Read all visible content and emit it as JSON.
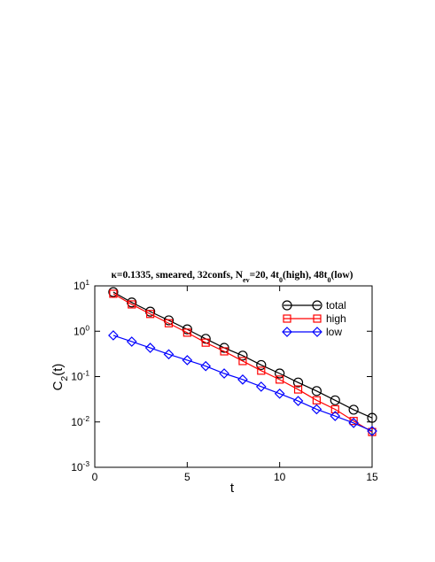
{
  "chart_data": {
    "type": "line",
    "title": "κ=0.1335, smeared, 32confs, N_{ev}=20, 4t_{0}(high), 48t_{0}(low)",
    "x_label": "t",
    "y_label": "C_{2}(t)",
    "x": [
      1,
      2,
      3,
      4,
      5,
      6,
      7,
      8,
      9,
      10,
      11,
      12,
      13,
      14,
      15
    ],
    "series": [
      {
        "name": "total",
        "color": "#000000",
        "marker": "circle",
        "values": [
          7.3,
          4.3,
          2.7,
          1.74,
          1.1,
          0.68,
          0.43,
          0.29,
          0.18,
          0.117,
          0.074,
          0.048,
          0.03,
          0.0186,
          0.0123
        ]
      },
      {
        "name": "high",
        "color": "#ff0000",
        "marker": "square",
        "values": [
          6.7,
          3.9,
          2.4,
          1.5,
          0.93,
          0.56,
          0.36,
          0.22,
          0.135,
          0.086,
          0.052,
          0.03,
          0.019,
          0.0105,
          0.006
        ]
      },
      {
        "name": "low",
        "color": "#0000ff",
        "marker": "diamond",
        "values": [
          0.81,
          0.59,
          0.43,
          0.31,
          0.23,
          0.17,
          0.117,
          0.086,
          0.06,
          0.042,
          0.029,
          0.019,
          0.0135,
          0.0095,
          0.0063
        ]
      }
    ],
    "xlim": [
      0,
      15
    ],
    "xticks": [
      0,
      5,
      10,
      15
    ],
    "ylim": [
      0.001,
      10
    ],
    "y_scale": "log",
    "yticks": [
      {
        "value": 0.001,
        "label": "10^-3"
      },
      {
        "value": 0.01,
        "label": "10^-2"
      },
      {
        "value": 0.1,
        "label": "10^-1"
      },
      {
        "value": 1,
        "label": "10^0"
      },
      {
        "value": 10,
        "label": "10^1"
      }
    ],
    "legend": "upper right"
  }
}
